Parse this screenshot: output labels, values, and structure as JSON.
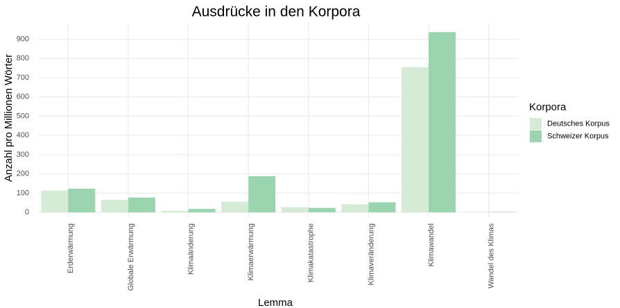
{
  "chart_data": {
    "type": "bar",
    "title": "Ausdrücke in den Korpora",
    "x_label": "Lemma",
    "y_label": "Anzahl pro Millionen Wörter",
    "legend_title": "Korpora",
    "legend_position": "right",
    "grid": true,
    "categories": [
      "Erderwärmung",
      "Globale Erwärmung",
      "Klimaänderung",
      "Klimaerwärmung",
      "Klimakatastrophe",
      "Klimaveränderung",
      "Klimawandel",
      "Wandel des Klimas"
    ],
    "series": [
      {
        "name": "Deutsches Korpus",
        "color": "#d5ebd6",
        "values": [
          113,
          65,
          8,
          55,
          27,
          42,
          755,
          1
        ]
      },
      {
        "name": "Schweizer Korpus",
        "color": "#9bd5b0",
        "values": [
          123,
          77,
          18,
          188,
          23,
          52,
          937,
          2
        ]
      }
    ],
    "ylim": [
      -25,
      985
    ],
    "yticks": [
      0,
      100,
      200,
      300,
      400,
      500,
      600,
      700,
      800,
      900
    ]
  }
}
